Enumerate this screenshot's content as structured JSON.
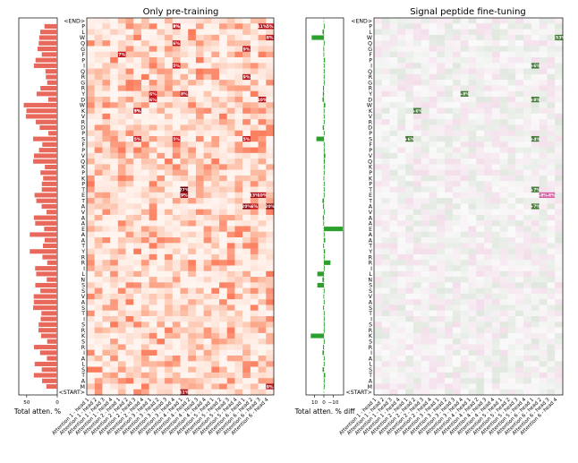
{
  "chart_data": [
    {
      "type": "heatmap",
      "title": "Only pre-training",
      "xlabel": "",
      "ylabel": "",
      "color_scheme": "reds",
      "columns": [
        "Attention 1 - head 1",
        "Attention 1 - head 2",
        "Attention 1 - head 3",
        "Attention 1 - head 4",
        "Attention 2 - head 1",
        "Attention 2 - head 2",
        "Attention 2 - head 3",
        "Attention 2 - head 4",
        "Attention 3 - head 1",
        "Attention 3 - head 2",
        "Attention 3 - head 3",
        "Attention 3 - head 4",
        "Attention 4 - head 1",
        "Attention 4 - head 2",
        "Attention 4 - head 3",
        "Attention 4 - head 4",
        "Attention 5 - head 1",
        "Attention 5 - head 2",
        "Attention 5 - head 3",
        "Attention 5 - head 4",
        "Attention 6 - head 1",
        "Attention 6 - head 2",
        "Attention 6 - head 3",
        "Attention 6 - head 4"
      ],
      "rows": [
        "<END>",
        "P",
        "L",
        "W",
        "Q",
        "G",
        "F",
        "P",
        "I",
        "Q",
        "R",
        "G",
        "R",
        "Y",
        "D",
        "W",
        "K",
        "V",
        "R",
        "D",
        "P",
        "S",
        "F",
        "P",
        "V",
        "Q",
        "K",
        "P",
        "K",
        "P",
        "T",
        "E",
        "T",
        "A",
        "V",
        "A",
        "A",
        "E",
        "A",
        "A",
        "T",
        "Y",
        "R",
        "R",
        "I",
        "L",
        "N",
        "S",
        "S",
        "V",
        "A",
        "S",
        "T",
        "I",
        "S",
        "R",
        "K",
        "S",
        "R",
        "I",
        "A",
        "L",
        "S",
        "T",
        "A",
        "M",
        "<START>"
      ],
      "annotations": [
        {
          "row": "P",
          "col": "Attention 6 - head 4",
          "label": "5%"
        },
        {
          "row": "G",
          "col": "Attention 6 - head 1",
          "label": "9%"
        },
        {
          "row": "F",
          "col": "Attention 2 - head 1",
          "label": "7%"
        },
        {
          "row": "P",
          "col": "Attention 6 - head 3",
          "label": "11%"
        },
        {
          "row": "I",
          "col": "Attention 3 - head 4",
          "label": "5%"
        },
        {
          "row": "Q",
          "col": "Attention 3 - head 4",
          "label": "6%"
        },
        {
          "row": "R",
          "col": "Attention 6 - head 1",
          "label": "9%"
        },
        {
          "row": "Y",
          "col": "Attention 3 - head 1",
          "label": "6%"
        },
        {
          "row": "D",
          "col": "Attention 3 - head 1",
          "label": "6%"
        },
        {
          "row": "D",
          "col": "Attention 6 - head 3",
          "label": "10%"
        },
        {
          "row": "W",
          "col": "Attention 6 - head 4",
          "label": "8%"
        },
        {
          "row": "K",
          "col": "Attention 2 - head 3",
          "label": "5%"
        },
        {
          "row": "S",
          "col": "Attention 2 - head 3",
          "label": "5%"
        },
        {
          "row": "P",
          "col": "Attention 3 - head 4",
          "label": "5%"
        },
        {
          "row": "K",
          "col": "Attention 2 - head 3",
          "label": "7%"
        },
        {
          "row": "P",
          "col": "Attention 3 - head 4",
          "label": "8%"
        },
        {
          "row": "E",
          "col": "Attention 4 - head 1",
          "label": "9%"
        },
        {
          "row": "E",
          "col": "Attention 6 - head 2",
          "label": "13%"
        },
        {
          "row": "E",
          "col": "Attention 6 - head 3",
          "label": "10%"
        },
        {
          "row": "A",
          "col": "Attention 6 - head 2",
          "label": "6%"
        },
        {
          "row": "Y",
          "col": "Attention 4 - head 1",
          "label": "8%"
        },
        {
          "row": "S",
          "col": "Attention 3 - head 4",
          "label": "5%"
        },
        {
          "row": "S",
          "col": "Attention 6 - head 1",
          "label": "5%"
        },
        {
          "row": "T",
          "col": "Attention 4 - head 1",
          "label": "27%"
        },
        {
          "row": "A",
          "col": "Attention 6 - head 1",
          "label": "20%"
        },
        {
          "row": "A",
          "col": "Attention 6 - head 4",
          "label": "20%"
        },
        {
          "row": "M",
          "col": "Attention 6 - head 4",
          "label": "9%"
        },
        {
          "row": "<START>",
          "col": "Attention 4 - head 1",
          "label": "11%"
        }
      ],
      "side_bar": {
        "type": "bar",
        "orientation": "horizontal",
        "xlabel": "Total atten. %",
        "x_ticks": [
          "50",
          "0"
        ],
        "color": "#e8695c"
      }
    },
    {
      "type": "heatmap",
      "title": "Signal peptide fine-tuning",
      "xlabel": "",
      "ylabel": "",
      "color_scheme": "pink-green diverging",
      "columns": [
        "Attention 1 - head 1",
        "Attention 1 - head 2",
        "Attention 1 - head 3",
        "Attention 1 - head 4",
        "Attention 2 - head 1",
        "Attention 2 - head 2",
        "Attention 2 - head 3",
        "Attention 2 - head 4",
        "Attention 3 - head 1",
        "Attention 3 - head 2",
        "Attention 3 - head 3",
        "Attention 3 - head 4",
        "Attention 4 - head 1",
        "Attention 4 - head 2",
        "Attention 4 - head 3",
        "Attention 4 - head 4",
        "Attention 5 - head 1",
        "Attention 5 - head 2",
        "Attention 5 - head 3",
        "Attention 5 - head 4",
        "Attention 6 - head 1",
        "Attention 6 - head 2",
        "Attention 6 - head 3",
        "Attention 6 - head 4"
      ],
      "rows": [
        "<END>",
        "P",
        "L",
        "W",
        "Q",
        "G",
        "F",
        "P",
        "I",
        "Q",
        "R",
        "G",
        "R",
        "Y",
        "D",
        "W",
        "K",
        "V",
        "R",
        "D",
        "P",
        "S",
        "F",
        "P",
        "V",
        "Q",
        "K",
        "P",
        "K",
        "P",
        "T",
        "E",
        "T",
        "A",
        "V",
        "A",
        "A",
        "E",
        "A",
        "A",
        "T",
        "Y",
        "R",
        "R",
        "I",
        "L",
        "N",
        "S",
        "S",
        "V",
        "A",
        "S",
        "T",
        "I",
        "S",
        "R",
        "K",
        "S",
        "R",
        "I",
        "A",
        "L",
        "S",
        "T",
        "A",
        "M",
        "<START>"
      ],
      "annotations": [
        {
          "row": "W",
          "col": "Attention 6 - head 4",
          "label": "+53%"
        },
        {
          "row": "D",
          "col": "Attention 6 - head 1",
          "label": "+8%"
        },
        {
          "row": "S",
          "col": "Attention 2 - head 1",
          "label": "+6%"
        },
        {
          "row": "E",
          "col": "Attention 6 - head 2",
          "label": "-8%"
        },
        {
          "row": "E",
          "col": "Attention 6 - head 3",
          "label": "-8%"
        },
        {
          "row": "A",
          "col": "Attention 6 - head 1",
          "label": "+7%"
        },
        {
          "row": "T",
          "col": "Attention 6 - head 1",
          "label": "+7%"
        },
        {
          "row": "Y",
          "col": "Attention 3 - head 4",
          "label": "+8%"
        },
        {
          "row": "I",
          "col": "Attention 6 - head 1",
          "label": "+6%"
        },
        {
          "row": "K",
          "col": "Attention 2 - head 2",
          "label": "+6%"
        },
        {
          "row": "S",
          "col": "Attention 6 - head 1",
          "label": "+4%"
        }
      ],
      "side_bar": {
        "type": "bar",
        "orientation": "horizontal",
        "xlabel": "Total atten. % diff",
        "x_ticks": [
          "10",
          "0",
          "−10"
        ],
        "color": "#2ca02c"
      }
    }
  ]
}
